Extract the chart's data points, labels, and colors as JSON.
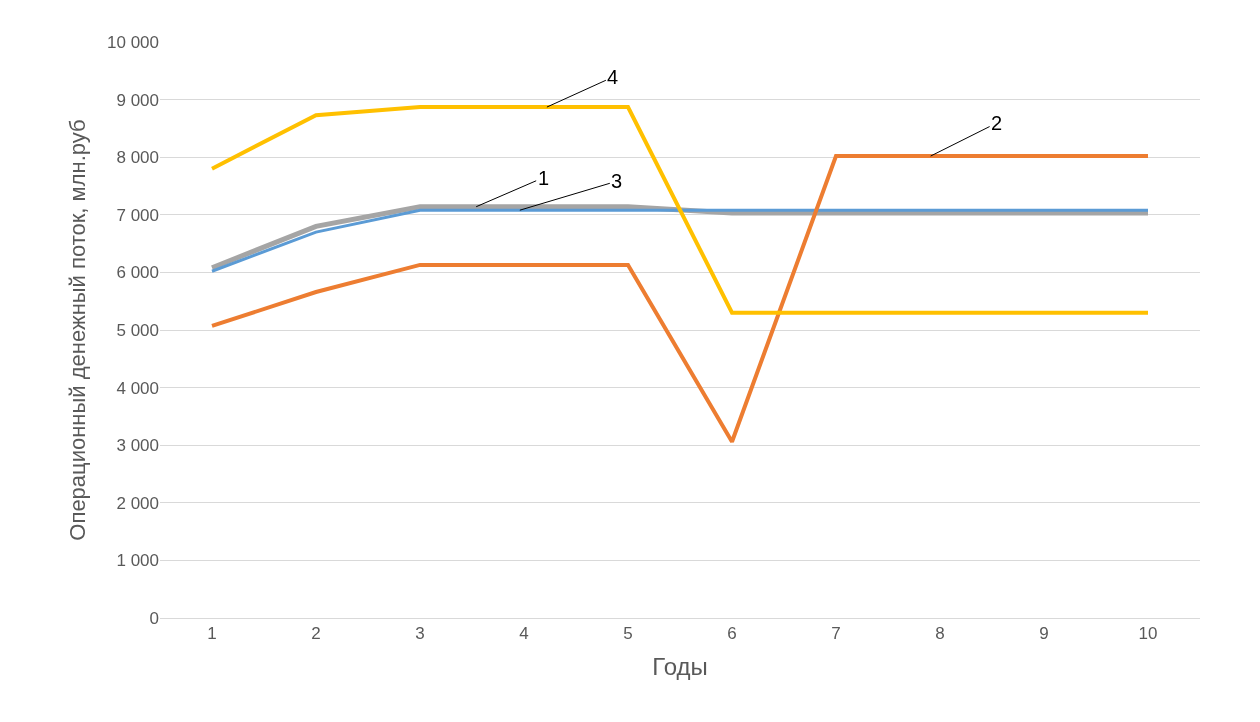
{
  "chart_data": {
    "type": "line",
    "xlabel": "Годы",
    "ylabel": "Операционный денежный поток, млн.руб",
    "x": [
      1,
      2,
      3,
      4,
      5,
      6,
      7,
      8,
      9,
      10
    ],
    "series": [
      {
        "color": "#a5a5a5",
        "values": [
          6080,
          6800,
          7140,
          7140,
          7140,
          7030,
          7030,
          7030,
          7030,
          7030
        ]
      },
      {
        "color": "#5b9bd5",
        "values": [
          6020,
          6700,
          7080,
          7080,
          7080,
          7080,
          7080,
          7080,
          7080,
          7080
        ]
      },
      {
        "color": "#ed7d31",
        "values": [
          5070,
          5660,
          6130,
          6130,
          6130,
          3060,
          8020,
          8020,
          8020,
          8020
        ]
      },
      {
        "color": "#ffc000",
        "values": [
          7800,
          8730,
          8870,
          8870,
          8870,
          5300,
          5300,
          5300,
          5300,
          5300
        ]
      }
    ],
    "annotations": [
      {
        "text": "1",
        "x": 3.54,
        "y": 7140
      },
      {
        "text": "3",
        "x": 3.96,
        "y": 7080
      },
      {
        "text": "4",
        "x": 4.22,
        "y": 8870
      },
      {
        "text": "2",
        "x": 7.91,
        "y": 8020
      }
    ],
    "xlim": [
      0.5,
      10.5
    ],
    "xticks": [
      1,
      2,
      3,
      4,
      5,
      6,
      7,
      8,
      9,
      10
    ],
    "ylim": [
      0,
      10000
    ],
    "yticks": [
      0,
      {
        "value": 1000,
        "label": "1 000"
      },
      {
        "value": 2000,
        "label": "2 000"
      },
      {
        "value": 3000,
        "label": "3 000"
      },
      {
        "value": 4000,
        "label": "4 000"
      },
      {
        "value": 5000,
        "label": "5 000"
      },
      {
        "value": 6000,
        "label": "6 000"
      },
      {
        "value": 7000,
        "label": "7 000"
      },
      {
        "value": 8000,
        "label": "8 000"
      },
      {
        "value": 9000,
        "label": "9 000"
      },
      {
        "value": 10000,
        "label": "10 000"
      }
    ],
    "grid": "y",
    "marker": "none",
    "line_style": "solid"
  }
}
